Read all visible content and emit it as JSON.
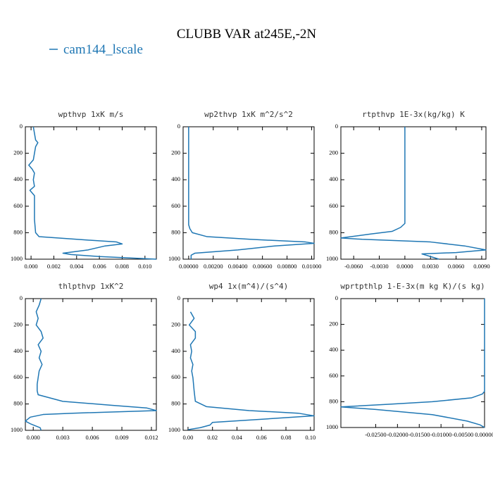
{
  "title": "CLUBB VAR at245E,-2N",
  "legend": {
    "name": "cam144_lscale",
    "color": "#1f77b4"
  },
  "chart_data": [
    {
      "type": "line",
      "title": "wpthvp  1xK m/s",
      "xlim": [
        -0.0005,
        0.011
      ],
      "ylim": [
        0,
        1000
      ],
      "yreverse": true,
      "xticks": [
        {
          "value": 0,
          "label": "0.000"
        },
        {
          "value": 0.002,
          "label": "0.002"
        },
        {
          "value": 0.004,
          "label": "0.004"
        },
        {
          "value": 0.006,
          "label": "0.006"
        },
        {
          "value": 0.008,
          "label": "0.008"
        },
        {
          "value": 0.01,
          "label": "0.010"
        }
      ],
      "yticks": [
        0,
        200,
        400,
        600,
        800,
        1000
      ],
      "series": [
        {
          "color": "#1f77b4",
          "levels": [
            0,
            50,
            100,
            120,
            150,
            200,
            250,
            290,
            320,
            350,
            400,
            450,
            480,
            520,
            600,
            700,
            800,
            830,
            850,
            870,
            885,
            900,
            930,
            955,
            965,
            980,
            1000
          ],
          "values": [
            0.0002,
            0.0003,
            0.0004,
            0.0006,
            0.0004,
            0.0003,
            0.0002,
            -0.0002,
            0.0001,
            0.0003,
            0.0002,
            0.0003,
            -0.0001,
            0.0003,
            0.0003,
            0.0003,
            0.0004,
            0.0007,
            0.004,
            0.0075,
            0.008,
            0.0065,
            0.005,
            0.0028,
            0.0035,
            0.006,
            0.011
          ]
        }
      ]
    },
    {
      "type": "line",
      "title": "wp2thvp  1xK m^2/s^2",
      "xlim": [
        -0.00045,
        0.0102
      ],
      "ylim": [
        0,
        1000
      ],
      "yreverse": true,
      "xticks": [
        {
          "value": 0,
          "label": "0.00000"
        },
        {
          "value": 0.002,
          "label": "0.00200"
        },
        {
          "value": 0.004,
          "label": "0.00400"
        },
        {
          "value": 0.006,
          "label": "0.00600"
        },
        {
          "value": 0.008,
          "label": "0.00800"
        },
        {
          "value": 0.01,
          "label": "0.01000"
        }
      ],
      "yticks": [
        0,
        200,
        400,
        600,
        800,
        1000
      ],
      "series": [
        {
          "color": "#1f77b4",
          "levels": [
            0,
            200,
            400,
            600,
            700,
            740,
            770,
            800,
            830,
            850,
            870,
            880,
            900,
            930,
            955,
            970,
            1000
          ],
          "values": [
            0,
            0,
            0,
            0,
            0,
            0,
            0.0001,
            0.0003,
            0.0015,
            0.005,
            0.0095,
            0.0102,
            0.007,
            0.004,
            0.0005,
            0.0002,
            0.0002
          ]
        }
      ]
    },
    {
      "type": "line",
      "title": "rtpthvp  1E-3x(kg/kg) K",
      "xlim": [
        -0.0075,
        0.0095
      ],
      "ylim": [
        0,
        1000
      ],
      "yreverse": true,
      "xticks": [
        {
          "value": -0.006,
          "label": "-0.0060"
        },
        {
          "value": -0.003,
          "label": "-0.0030"
        },
        {
          "value": 0,
          "label": "0.0000"
        },
        {
          "value": 0.003,
          "label": "0.0030"
        },
        {
          "value": 0.006,
          "label": "0.0060"
        },
        {
          "value": 0.009,
          "label": "0.0090"
        }
      ],
      "yticks": [
        0,
        200,
        400,
        600,
        800,
        1000
      ],
      "series": [
        {
          "color": "#1f77b4",
          "levels": [
            0,
            200,
            400,
            600,
            730,
            760,
            790,
            810,
            840,
            850,
            870,
            900,
            930,
            950,
            960,
            980,
            1000
          ],
          "values": [
            0,
            0,
            0,
            0,
            0,
            -0.0005,
            -0.0015,
            -0.004,
            -0.0075,
            -0.005,
            0.003,
            0.007,
            0.0095,
            0.006,
            0.002,
            0.003,
            0.004
          ]
        }
      ]
    },
    {
      "type": "line",
      "title": "thlpthvp  1xK^2",
      "xlim": [
        -0.0008,
        0.0125
      ],
      "ylim": [
        0,
        1000
      ],
      "yreverse": true,
      "xticks": [
        {
          "value": 0,
          "label": "0.000"
        },
        {
          "value": 0.003,
          "label": "0.003"
        },
        {
          "value": 0.006,
          "label": "0.006"
        },
        {
          "value": 0.009,
          "label": "0.009"
        },
        {
          "value": 0.012,
          "label": "0.012"
        }
      ],
      "yticks": [
        0,
        200,
        400,
        600,
        800,
        1000
      ],
      "series": [
        {
          "color": "#1f77b4",
          "levels": [
            0,
            50,
            100,
            150,
            200,
            250,
            300,
            350,
            400,
            450,
            500,
            550,
            600,
            650,
            700,
            730,
            780,
            810,
            830,
            850,
            870,
            880,
            900,
            930,
            950,
            980,
            1000
          ],
          "values": [
            0.0008,
            0.0006,
            0.0003,
            0.0005,
            0.0003,
            0.0008,
            0.001,
            0.0005,
            0.0008,
            0.0006,
            0.0009,
            0.0006,
            0.0005,
            0.0004,
            0.0004,
            0.0005,
            0.003,
            0.008,
            0.0115,
            0.0125,
            0.004,
            0.001,
            -0.0003,
            -0.0008,
            -0.0003,
            0.0007,
            0.0008
          ]
        }
      ]
    },
    {
      "type": "line",
      "title": "wp4  1x(m^4)/(s^4)",
      "xlim": [
        -0.004,
        0.103
      ],
      "ylim": [
        0,
        1000
      ],
      "yreverse": true,
      "xticks": [
        {
          "value": 0,
          "label": "0.00"
        },
        {
          "value": 0.02,
          "label": "0.02"
        },
        {
          "value": 0.04,
          "label": "0.04"
        },
        {
          "value": 0.06,
          "label": "0.06"
        },
        {
          "value": 0.08,
          "label": "0.08"
        },
        {
          "value": 0.1,
          "label": "0.10"
        }
      ],
      "yticks": [
        0,
        200,
        400,
        600,
        800,
        1000
      ],
      "series": [
        {
          "color": "#1f77b4",
          "levels": [
            100,
            150,
            200,
            250,
            300,
            350,
            400,
            450,
            500,
            550,
            600,
            700,
            780,
            820,
            850,
            870,
            890,
            910,
            940,
            960,
            980,
            995
          ],
          "values": [
            0.002,
            0.005,
            0.001,
            0.006,
            0.006,
            0.002,
            0.003,
            0.002,
            0.004,
            0.003,
            0.004,
            0.005,
            0.006,
            0.015,
            0.05,
            0.09,
            0.103,
            0.07,
            0.02,
            0.018,
            0.01,
            0
          ]
        }
      ]
    },
    {
      "type": "line",
      "title": "wprtpthlp  1-E-3x(m kg K)/(s kg)",
      "xlim": [
        -0.033,
        0
      ],
      "ylim": [
        0,
        1000
      ],
      "yreverse": true,
      "xticks": [
        {
          "value": -0.025,
          "label": "-0.02500"
        },
        {
          "value": -0.02,
          "label": "-0.02000"
        },
        {
          "value": -0.015,
          "label": "-0.01500"
        },
        {
          "value": -0.01,
          "label": "-0.01000"
        },
        {
          "value": -0.005,
          "label": "-0.00500"
        },
        {
          "value": 0,
          "label": "0.00000"
        }
      ],
      "yticks": [
        0,
        200,
        400,
        600,
        800,
        1000
      ],
      "series": [
        {
          "color": "#1f77b4",
          "levels": [
            0,
            200,
            400,
            600,
            720,
            740,
            770,
            800,
            820,
            840,
            860,
            900,
            950,
            980,
            1000
          ],
          "values": [
            0,
            0,
            0,
            0,
            0,
            -0.0005,
            -0.003,
            -0.012,
            -0.022,
            -0.033,
            -0.025,
            -0.012,
            -0.004,
            -0.001,
            0
          ]
        }
      ]
    }
  ]
}
